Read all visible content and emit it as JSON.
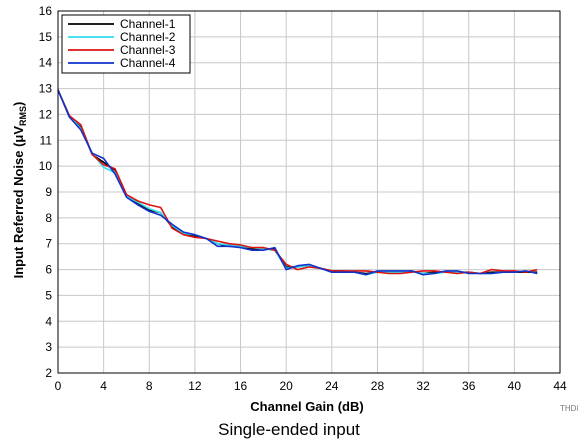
{
  "chart_data": {
    "type": "line",
    "title": "",
    "xlabel": "Channel Gain (dB)",
    "ylabel_main": "Input Referred Noise (",
    "ylabel_mu": "μ",
    "ylabel_v": "V",
    "ylabel_sub": "RMS",
    "ylabel_close": ")",
    "xlim": [
      0,
      44
    ],
    "ylim": [
      2,
      16
    ],
    "xticks": [
      "0",
      "4",
      "8",
      "12",
      "16",
      "20",
      "24",
      "28",
      "32",
      "36",
      "40",
      "44"
    ],
    "yticks": [
      "2",
      "3",
      "4",
      "5",
      "6",
      "7",
      "8",
      "9",
      "10",
      "11",
      "12",
      "13",
      "14",
      "15",
      "16"
    ],
    "grid": true,
    "legend_position": "top-left",
    "figure_id": "THD8",
    "x": [
      0,
      1,
      2,
      3,
      4,
      5,
      6,
      7,
      8,
      9,
      10,
      11,
      12,
      13,
      14,
      15,
      16,
      17,
      18,
      19,
      20,
      21,
      22,
      23,
      24,
      25,
      26,
      27,
      28,
      29,
      30,
      31,
      32,
      33,
      34,
      35,
      36,
      37,
      38,
      39,
      40,
      41,
      42
    ],
    "series": [
      {
        "name": "Channel-1",
        "color": "#000000",
        "values": [
          12.95,
          11.9,
          11.5,
          10.45,
          10.15,
          9.85,
          8.85,
          8.55,
          8.3,
          8.2,
          7.65,
          7.4,
          7.3,
          7.2,
          7.0,
          6.9,
          6.9,
          6.8,
          6.8,
          6.8,
          6.1,
          6.1,
          6.15,
          6.05,
          5.95,
          5.95,
          5.9,
          5.85,
          5.9,
          5.9,
          5.9,
          5.95,
          5.85,
          5.9,
          5.9,
          5.9,
          5.9,
          5.85,
          5.9,
          5.9,
          5.9,
          5.9,
          5.9
        ]
      },
      {
        "name": "Channel-2",
        "color": "#33ddee",
        "values": [
          12.95,
          11.95,
          11.45,
          10.5,
          9.95,
          9.75,
          8.85,
          8.6,
          8.35,
          8.2,
          7.7,
          7.4,
          7.35,
          7.2,
          7.0,
          6.95,
          6.9,
          6.85,
          6.8,
          6.75,
          6.05,
          6.1,
          6.15,
          6.05,
          5.9,
          5.9,
          5.9,
          5.8,
          5.9,
          5.9,
          5.9,
          5.95,
          5.85,
          5.85,
          5.9,
          5.9,
          5.9,
          5.85,
          5.85,
          5.9,
          5.9,
          5.95,
          5.85
        ]
      },
      {
        "name": "Channel-3",
        "color": "#dd1111",
        "values": [
          12.95,
          11.95,
          11.6,
          10.45,
          10.05,
          9.9,
          8.9,
          8.65,
          8.5,
          8.4,
          7.6,
          7.35,
          7.25,
          7.2,
          7.1,
          7.0,
          6.95,
          6.85,
          6.85,
          6.75,
          6.2,
          6.0,
          6.1,
          6.05,
          5.95,
          5.95,
          5.95,
          5.95,
          5.9,
          5.85,
          5.85,
          5.9,
          5.95,
          5.95,
          5.9,
          5.85,
          5.9,
          5.85,
          6.0,
          5.95,
          5.95,
          5.9,
          6.0
        ]
      },
      {
        "name": "Channel-4",
        "color": "#1133cc",
        "values": [
          12.95,
          11.9,
          11.4,
          10.5,
          10.3,
          9.7,
          8.8,
          8.5,
          8.25,
          8.1,
          7.75,
          7.45,
          7.35,
          7.2,
          6.9,
          6.9,
          6.85,
          6.75,
          6.75,
          6.85,
          6.0,
          6.15,
          6.2,
          6.05,
          5.9,
          5.9,
          5.9,
          5.8,
          5.95,
          5.95,
          5.95,
          5.95,
          5.8,
          5.85,
          5.95,
          5.95,
          5.85,
          5.85,
          5.85,
          5.9,
          5.9,
          5.95,
          5.85
        ]
      }
    ]
  },
  "caption": "Single-ended input"
}
